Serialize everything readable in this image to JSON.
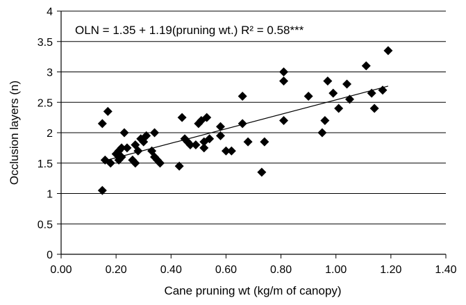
{
  "chart_data": {
    "type": "scatter",
    "title": "",
    "xlabel": "Cane pruning wt (kg/m of canopy)",
    "ylabel": "Occlusion layers (n)",
    "annotation": "OLN = 1.35 + 1.19(pruning wt.) R² = 0.58***",
    "xlim": [
      0,
      1.4
    ],
    "ylim": [
      0,
      4
    ],
    "x_ticks": [
      "0.00",
      "0.20",
      "0.40",
      "0.60",
      "0.80",
      "1.00",
      "1.20",
      "1.40"
    ],
    "y_ticks": [
      "0",
      "0.5",
      "1",
      "1.5",
      "2",
      "2.5",
      "3",
      "3.5",
      "4"
    ],
    "grid": "horizontal",
    "legend": "none",
    "marker": "diamond",
    "marker_color": "#000000",
    "trendline": {
      "intercept": 1.35,
      "slope": 1.19,
      "x_range": [
        0.15,
        1.19
      ]
    },
    "series": [
      {
        "points": [
          [
            0.15,
            1.05
          ],
          [
            0.15,
            2.15
          ],
          [
            0.16,
            1.55
          ],
          [
            0.17,
            2.35
          ],
          [
            0.18,
            1.5
          ],
          [
            0.2,
            1.65
          ],
          [
            0.21,
            1.7
          ],
          [
            0.21,
            1.55
          ],
          [
            0.22,
            1.6
          ],
          [
            0.22,
            1.75
          ],
          [
            0.23,
            2.0
          ],
          [
            0.24,
            1.75
          ],
          [
            0.26,
            1.55
          ],
          [
            0.27,
            1.5
          ],
          [
            0.27,
            1.8
          ],
          [
            0.28,
            1.7
          ],
          [
            0.29,
            1.9
          ],
          [
            0.3,
            1.85
          ],
          [
            0.31,
            1.95
          ],
          [
            0.33,
            1.7
          ],
          [
            0.34,
            1.6
          ],
          [
            0.34,
            2.0
          ],
          [
            0.35,
            1.55
          ],
          [
            0.36,
            1.5
          ],
          [
            0.43,
            1.45
          ],
          [
            0.44,
            2.25
          ],
          [
            0.45,
            1.9
          ],
          [
            0.46,
            1.85
          ],
          [
            0.47,
            1.8
          ],
          [
            0.49,
            1.8
          ],
          [
            0.5,
            2.15
          ],
          [
            0.51,
            2.2
          ],
          [
            0.52,
            1.85
          ],
          [
            0.52,
            1.75
          ],
          [
            0.53,
            2.25
          ],
          [
            0.54,
            1.9
          ],
          [
            0.58,
            2.1
          ],
          [
            0.58,
            1.95
          ],
          [
            0.6,
            1.7
          ],
          [
            0.62,
            1.7
          ],
          [
            0.66,
            2.6
          ],
          [
            0.66,
            2.15
          ],
          [
            0.68,
            1.85
          ],
          [
            0.73,
            1.35
          ],
          [
            0.74,
            1.85
          ],
          [
            0.81,
            3.0
          ],
          [
            0.81,
            2.85
          ],
          [
            0.81,
            2.2
          ],
          [
            0.9,
            2.6
          ],
          [
            0.95,
            2.0
          ],
          [
            0.96,
            2.2
          ],
          [
            0.97,
            2.85
          ],
          [
            0.99,
            2.65
          ],
          [
            1.01,
            2.4
          ],
          [
            1.04,
            2.8
          ],
          [
            1.05,
            2.55
          ],
          [
            1.11,
            3.1
          ],
          [
            1.13,
            2.65
          ],
          [
            1.14,
            2.4
          ],
          [
            1.17,
            2.7
          ],
          [
            1.19,
            3.35
          ]
        ]
      }
    ]
  }
}
